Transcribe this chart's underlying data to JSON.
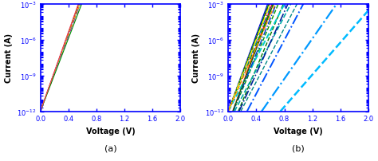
{
  "xlim_a": [
    0,
    2.0
  ],
  "xlim_b": [
    0,
    2.0
  ],
  "ylim": [
    1e-12,
    0.001
  ],
  "xlabel": "Voltage (V)",
  "ylabel": "Current (A)",
  "label_a": "(a)",
  "label_b": "(b)",
  "panel_a_curves": [
    {
      "I0": 1e-12,
      "n": 1.02,
      "color": "#0000ff",
      "ls": "-",
      "lw": 0.8
    },
    {
      "I0": 1e-12,
      "n": 1.03,
      "color": "#ff0000",
      "ls": "--",
      "lw": 0.8
    },
    {
      "I0": 1e-12,
      "n": 1.04,
      "color": "#00bb00",
      "ls": "-.",
      "lw": 0.8
    },
    {
      "I0": 1e-12,
      "n": 1.05,
      "color": "#ffff00",
      "ls": ":",
      "lw": 1.0
    },
    {
      "I0": 1e-12,
      "n": 1.06,
      "color": "#ff8800",
      "ls": "--",
      "lw": 0.8
    },
    {
      "I0": 1e-12,
      "n": 1.07,
      "color": "#cc00cc",
      "ls": "-.",
      "lw": 0.8
    },
    {
      "I0": 1e-12,
      "n": 1.08,
      "color": "#00cccc",
      "ls": ":",
      "lw": 0.8
    },
    {
      "I0": 1e-12,
      "n": 1.09,
      "color": "#ffffff",
      "ls": ":",
      "lw": 0.8
    },
    {
      "I0": 1e-12,
      "n": 1.1,
      "color": "#008800",
      "ls": "-",
      "lw": 0.8
    },
    {
      "I0": 1e-12,
      "n": 1.01,
      "color": "#ff4444",
      "ls": "-",
      "lw": 0.8
    }
  ],
  "panel_b_curves": [
    {
      "I0": 1e-12,
      "n": 1.05,
      "color": "#0000dd",
      "ls": "-",
      "lw": 1.0
    },
    {
      "I0": 1e-12,
      "n": 1.1,
      "color": "#ff0000",
      "ls": "-",
      "lw": 1.2
    },
    {
      "I0": 1e-13,
      "n": 1.05,
      "color": "#ff0000",
      "ls": "-",
      "lw": 1.0
    },
    {
      "I0": 1e-12,
      "n": 1.2,
      "color": "#00aa00",
      "ls": "--",
      "lw": 1.2
    },
    {
      "I0": 1e-13,
      "n": 1.2,
      "color": "#009900",
      "ls": "--",
      "lw": 1.0
    },
    {
      "I0": 1e-14,
      "n": 1.2,
      "color": "#007700",
      "ls": "--",
      "lw": 1.0
    },
    {
      "I0": 1e-12,
      "n": 1.5,
      "color": "#00cccc",
      "ls": "--",
      "lw": 1.4
    },
    {
      "I0": 1e-13,
      "n": 1.5,
      "color": "#00aaaa",
      "ls": "--",
      "lw": 1.2
    },
    {
      "I0": 1e-14,
      "n": 1.5,
      "color": "#008888",
      "ls": "--",
      "lw": 1.0
    },
    {
      "I0": 1e-12,
      "n": 1.1,
      "color": "#ffffff",
      "ls": ":",
      "lw": 1.8
    },
    {
      "I0": 1e-13,
      "n": 1.1,
      "color": "#dddddd",
      "ls": ":",
      "lw": 1.4
    },
    {
      "I0": 1e-12,
      "n": 1.15,
      "color": "#0044ff",
      "ls": "-.",
      "lw": 1.0
    },
    {
      "I0": 1e-13,
      "n": 1.15,
      "color": "#0033cc",
      "ls": "-.",
      "lw": 1.0
    },
    {
      "I0": 1e-14,
      "n": 1.3,
      "color": "#002299",
      "ls": "-.",
      "lw": 1.2
    },
    {
      "I0": 1e-15,
      "n": 1.5,
      "color": "#0055ff",
      "ls": "-.",
      "lw": 1.4
    },
    {
      "I0": 1e-16,
      "n": 2.0,
      "color": "#0099ff",
      "ls": "-.",
      "lw": 1.6
    },
    {
      "I0": 1e-17,
      "n": 2.5,
      "color": "#00bbff",
      "ls": "--",
      "lw": 1.8
    },
    {
      "I0": 1e-12,
      "n": 1.08,
      "color": "#008800",
      "ls": "-",
      "lw": 1.0
    },
    {
      "I0": 1e-13,
      "n": 1.08,
      "color": "#006600",
      "ls": "-",
      "lw": 0.8
    },
    {
      "I0": 1e-12,
      "n": 1.12,
      "color": "#ffff00",
      "ls": "-.",
      "lw": 1.0
    },
    {
      "I0": 1e-12,
      "n": 1.25,
      "color": "#ff8800",
      "ls": "--",
      "lw": 1.0
    }
  ]
}
